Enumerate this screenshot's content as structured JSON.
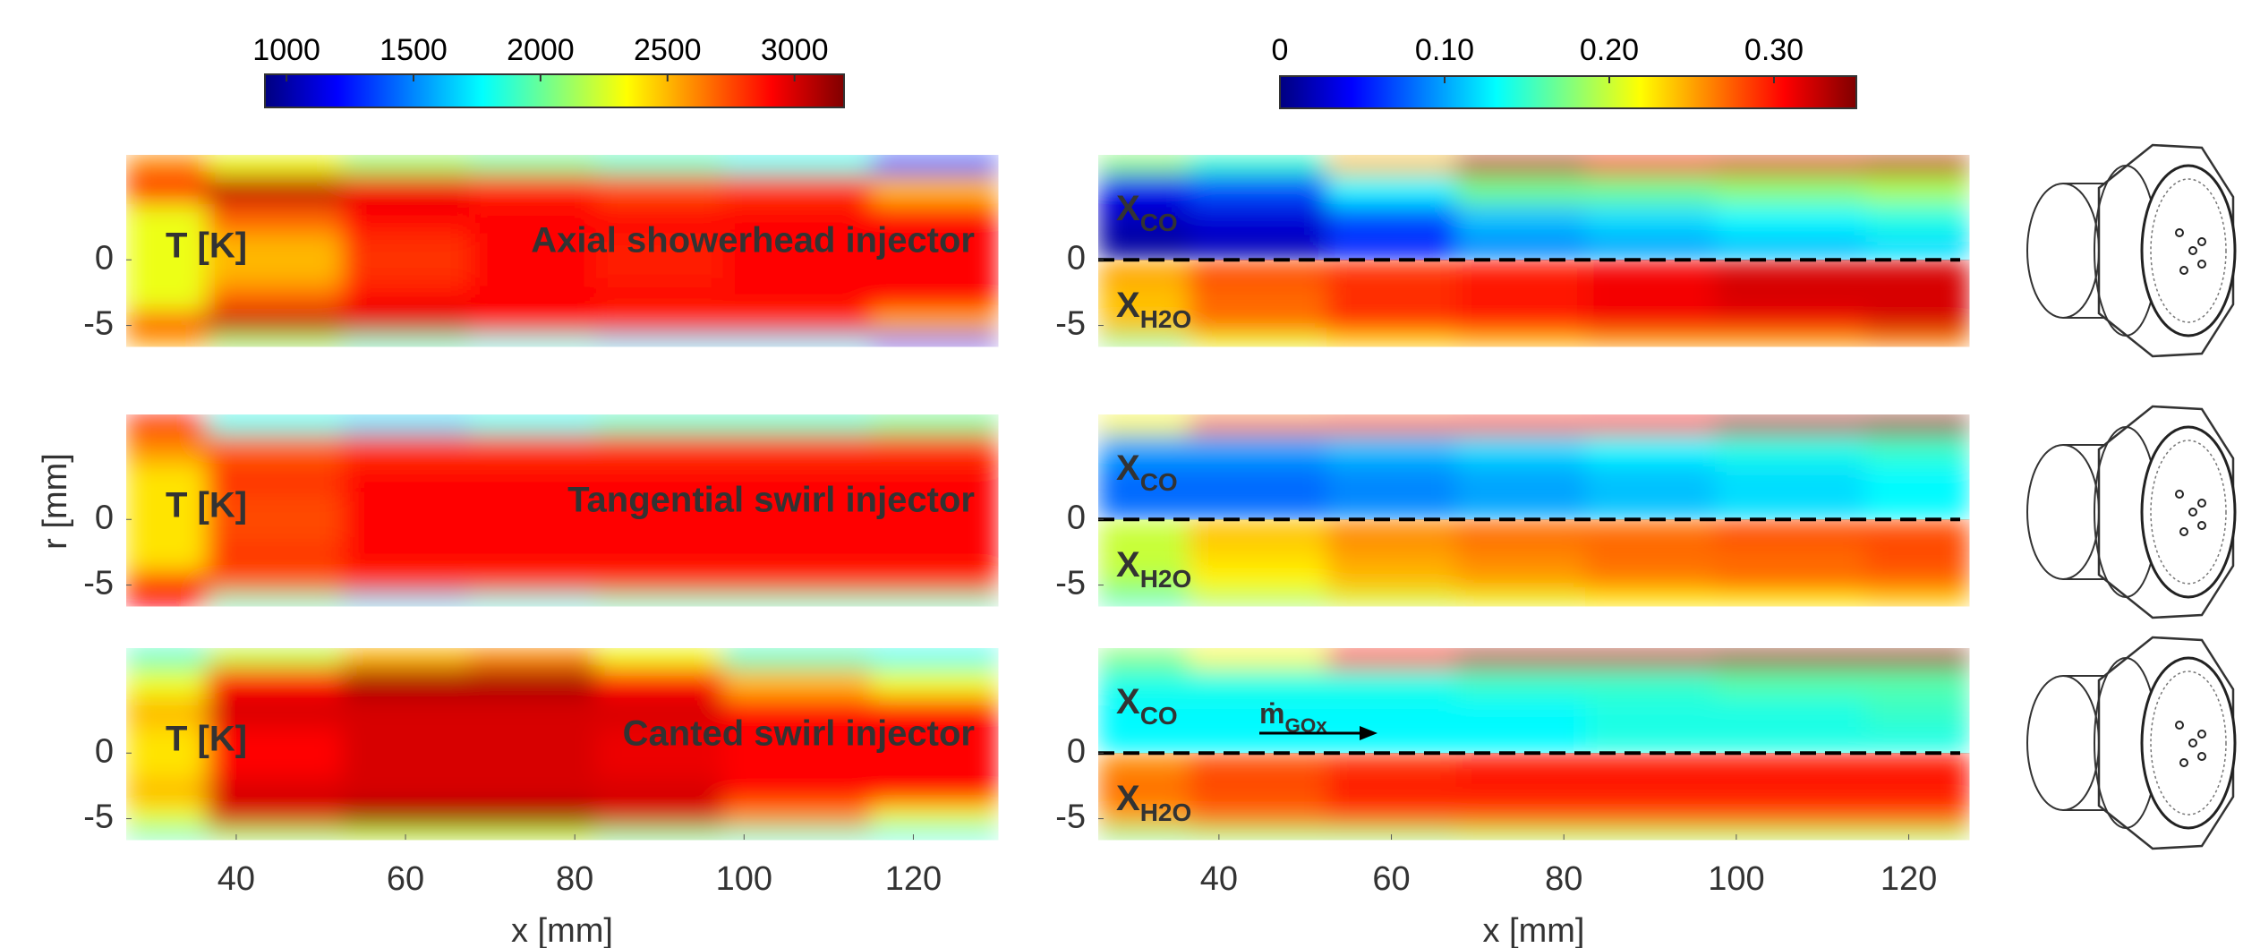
{
  "chart_data": [
    {
      "type": "heatmap",
      "colormap": "jet",
      "clim": [
        915,
        3195
      ],
      "cticks": [
        1000,
        1500,
        2000,
        2500,
        3000
      ],
      "xlabel": "x [mm]",
      "ylabel": "r [mm]",
      "xlim": [
        27,
        130
      ],
      "xticks": [
        40,
        60,
        80,
        100,
        120
      ],
      "ylim": [
        -6.6,
        8
      ],
      "yticks": [
        0,
        -5
      ],
      "x": [
        28,
        45,
        60,
        75,
        90,
        105,
        125
      ],
      "y": [
        7.5,
        5.5,
        3,
        1,
        -1,
        -3,
        -5,
        -6.3
      ],
      "panels": [
        {
          "label": "T [K]",
          "title": "Axial showerhead injector",
          "z": [
            [
              2600,
              2300,
              2100,
              2000,
              1900,
              1800,
              1400
            ],
            [
              2800,
              3050,
              2950,
              2850,
              2750,
              2800,
              2500
            ],
            [
              2300,
              2700,
              2900,
              2900,
              2900,
              2900,
              2900
            ],
            [
              2300,
              2500,
              2800,
              2900,
              2850,
              2900,
              2900
            ],
            [
              2300,
              2500,
              2800,
              2900,
              2850,
              2900,
              2900
            ],
            [
              2300,
              2700,
              2900,
              2900,
              2900,
              2900,
              2900
            ],
            [
              2800,
              3050,
              3000,
              2900,
              2800,
              2800,
              2500
            ],
            [
              2500,
              2100,
              1900,
              1800,
              1700,
              1700,
              1300
            ]
          ]
        },
        {
          "label": "T [K]",
          "title": "Tangential swirl injector",
          "z": [
            [
              2900,
              1800,
              1700,
              1800,
              1900,
              1900,
              2000
            ],
            [
              2600,
              2700,
              2800,
              2800,
              2800,
              2800,
              2800
            ],
            [
              2400,
              2800,
              2900,
              2900,
              2900,
              2900,
              2900
            ],
            [
              2400,
              2750,
              2900,
              2900,
              2900,
              2900,
              2900
            ],
            [
              2400,
              2750,
              2900,
              2900,
              2900,
              2900,
              2900
            ],
            [
              2400,
              2800,
              2900,
              2900,
              2900,
              2900,
              2900
            ],
            [
              2900,
              2700,
              2800,
              2800,
              2800,
              2800,
              2800
            ],
            [
              2900,
              1900,
              1700,
              1800,
              1900,
              1900,
              1900
            ]
          ]
        },
        {
          "label": "T [K]",
          "title": "Canted swirl injector",
          "z": [
            [
              1900,
              2200,
              2500,
              2600,
              2300,
              1900,
              1800
            ],
            [
              2300,
              2900,
              3100,
              3100,
              2900,
              2500,
              2300
            ],
            [
              2500,
              3000,
              3000,
              3000,
              3000,
              2900,
              2900
            ],
            [
              2400,
              2900,
              3000,
              3000,
              2950,
              2900,
              2900
            ],
            [
              2400,
              2900,
              3000,
              3000,
              2950,
              2900,
              2900
            ],
            [
              2500,
              3000,
              3000,
              3000,
              3000,
              2900,
              2900
            ],
            [
              2300,
              3000,
              3150,
              3150,
              3000,
              2600,
              2300
            ],
            [
              1900,
              2100,
              2200,
              2200,
              2000,
              1900,
              1800
            ]
          ]
        }
      ]
    },
    {
      "type": "heatmap",
      "colormap": "jet",
      "clim": [
        0,
        0.35
      ],
      "cticks": [
        0,
        {
          "value": 0.1,
          "label": "0.10"
        },
        {
          "value": 0.2,
          "label": "0.20"
        },
        {
          "value": 0.3,
          "label": "0.30"
        }
      ],
      "xlabel": "x [mm]",
      "xlim": [
        26,
        127
      ],
      "xticks": [
        40,
        60,
        80,
        100,
        120
      ],
      "ylim": [
        -6.6,
        8
      ],
      "yticks": [
        0,
        -5
      ],
      "divider": 0,
      "x": [
        28,
        45,
        60,
        75,
        90,
        105,
        125
      ],
      "y": [
        7.5,
        5.5,
        3,
        1,
        -1,
        -3,
        -5,
        -6.3
      ],
      "panels": [
        {
          "upper": {
            "text": "X",
            "sub": "CO",
            "color": "#ffffff"
          },
          "lower": {
            "text": "X",
            "sub": "H2O",
            "color": "#000000"
          },
          "z": [
            [
              0.18,
              0.15,
              0.24,
              0.33,
              0.31,
              0.32,
              0.33
            ],
            [
              0.04,
              0.07,
              0.13,
              0.17,
              0.17,
              0.18,
              0.19
            ],
            [
              0.02,
              0.03,
              0.07,
              0.11,
              0.12,
              0.13,
              0.14
            ],
            [
              0.01,
              0.02,
              0.05,
              0.09,
              0.1,
              0.11,
              0.12
            ],
            [
              0.25,
              0.28,
              0.29,
              0.3,
              0.31,
              0.32,
              0.32
            ],
            [
              0.24,
              0.27,
              0.29,
              0.3,
              0.31,
              0.32,
              0.32
            ],
            [
              0.24,
              0.27,
              0.29,
              0.3,
              0.31,
              0.31,
              0.32
            ],
            [
              0.17,
              0.21,
              0.23,
              0.24,
              0.25,
              0.25,
              0.26
            ]
          ]
        },
        {
          "upper": {
            "text": "X",
            "sub": "CO",
            "color": "#ffffff"
          },
          "lower": {
            "text": "X",
            "sub": "H2O",
            "color": "#000000"
          },
          "z": [
            [
              0.22,
              0.26,
              0.27,
              0.28,
              0.3,
              0.33,
              0.34
            ],
            [
              0.1,
              0.1,
              0.11,
              0.12,
              0.13,
              0.14,
              0.15
            ],
            [
              0.08,
              0.08,
              0.09,
              0.1,
              0.11,
              0.12,
              0.13
            ],
            [
              0.08,
              0.08,
              0.09,
              0.1,
              0.11,
              0.12,
              0.13
            ],
            [
              0.2,
              0.24,
              0.26,
              0.27,
              0.27,
              0.28,
              0.28
            ],
            [
              0.2,
              0.23,
              0.25,
              0.26,
              0.27,
              0.27,
              0.28
            ],
            [
              0.19,
              0.22,
              0.24,
              0.25,
              0.26,
              0.27,
              0.27
            ],
            [
              0.15,
              0.18,
              0.2,
              0.21,
              0.22,
              0.22,
              0.23
            ]
          ]
        },
        {
          "upper": {
            "text": "X",
            "sub": "CO",
            "color": "#000000"
          },
          "lower": {
            "text": "X",
            "sub": "H2O",
            "color": "#000000"
          },
          "annotation": {
            "text": "ṁ",
            "sub": "GOx"
          },
          "z": [
            [
              0.18,
              0.22,
              0.3,
              0.33,
              0.33,
              0.34,
              0.34
            ],
            [
              0.14,
              0.14,
              0.14,
              0.15,
              0.15,
              0.16,
              0.16
            ],
            [
              0.13,
              0.13,
              0.13,
              0.13,
              0.14,
              0.14,
              0.15
            ],
            [
              0.13,
              0.13,
              0.13,
              0.13,
              0.14,
              0.14,
              0.14
            ],
            [
              0.26,
              0.28,
              0.29,
              0.3,
              0.3,
              0.3,
              0.3
            ],
            [
              0.27,
              0.28,
              0.3,
              0.3,
              0.3,
              0.3,
              0.3
            ],
            [
              0.25,
              0.27,
              0.28,
              0.28,
              0.28,
              0.28,
              0.28
            ],
            [
              0.17,
              0.18,
              0.18,
              0.19,
              0.19,
              0.19,
              0.19
            ]
          ]
        }
      ]
    }
  ]
}
